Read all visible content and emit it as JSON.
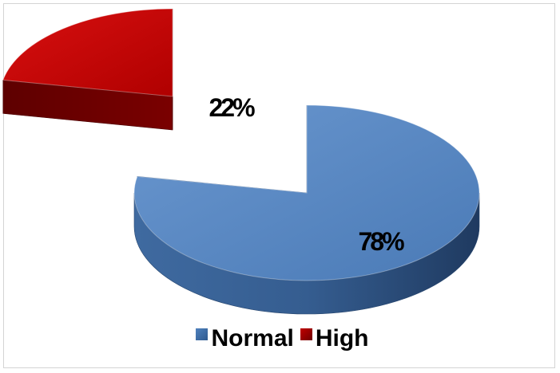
{
  "chart_data": {
    "type": "pie",
    "style": "3d-exploded",
    "slices": [
      {
        "name": "Normal",
        "value": 78,
        "label": "78%",
        "color": "#4f81bd"
      },
      {
        "name": "High",
        "value": 22,
        "label": "22%",
        "color": "#c00000"
      }
    ],
    "legend": {
      "position": "bottom",
      "entries": [
        "Normal",
        "High"
      ]
    }
  }
}
